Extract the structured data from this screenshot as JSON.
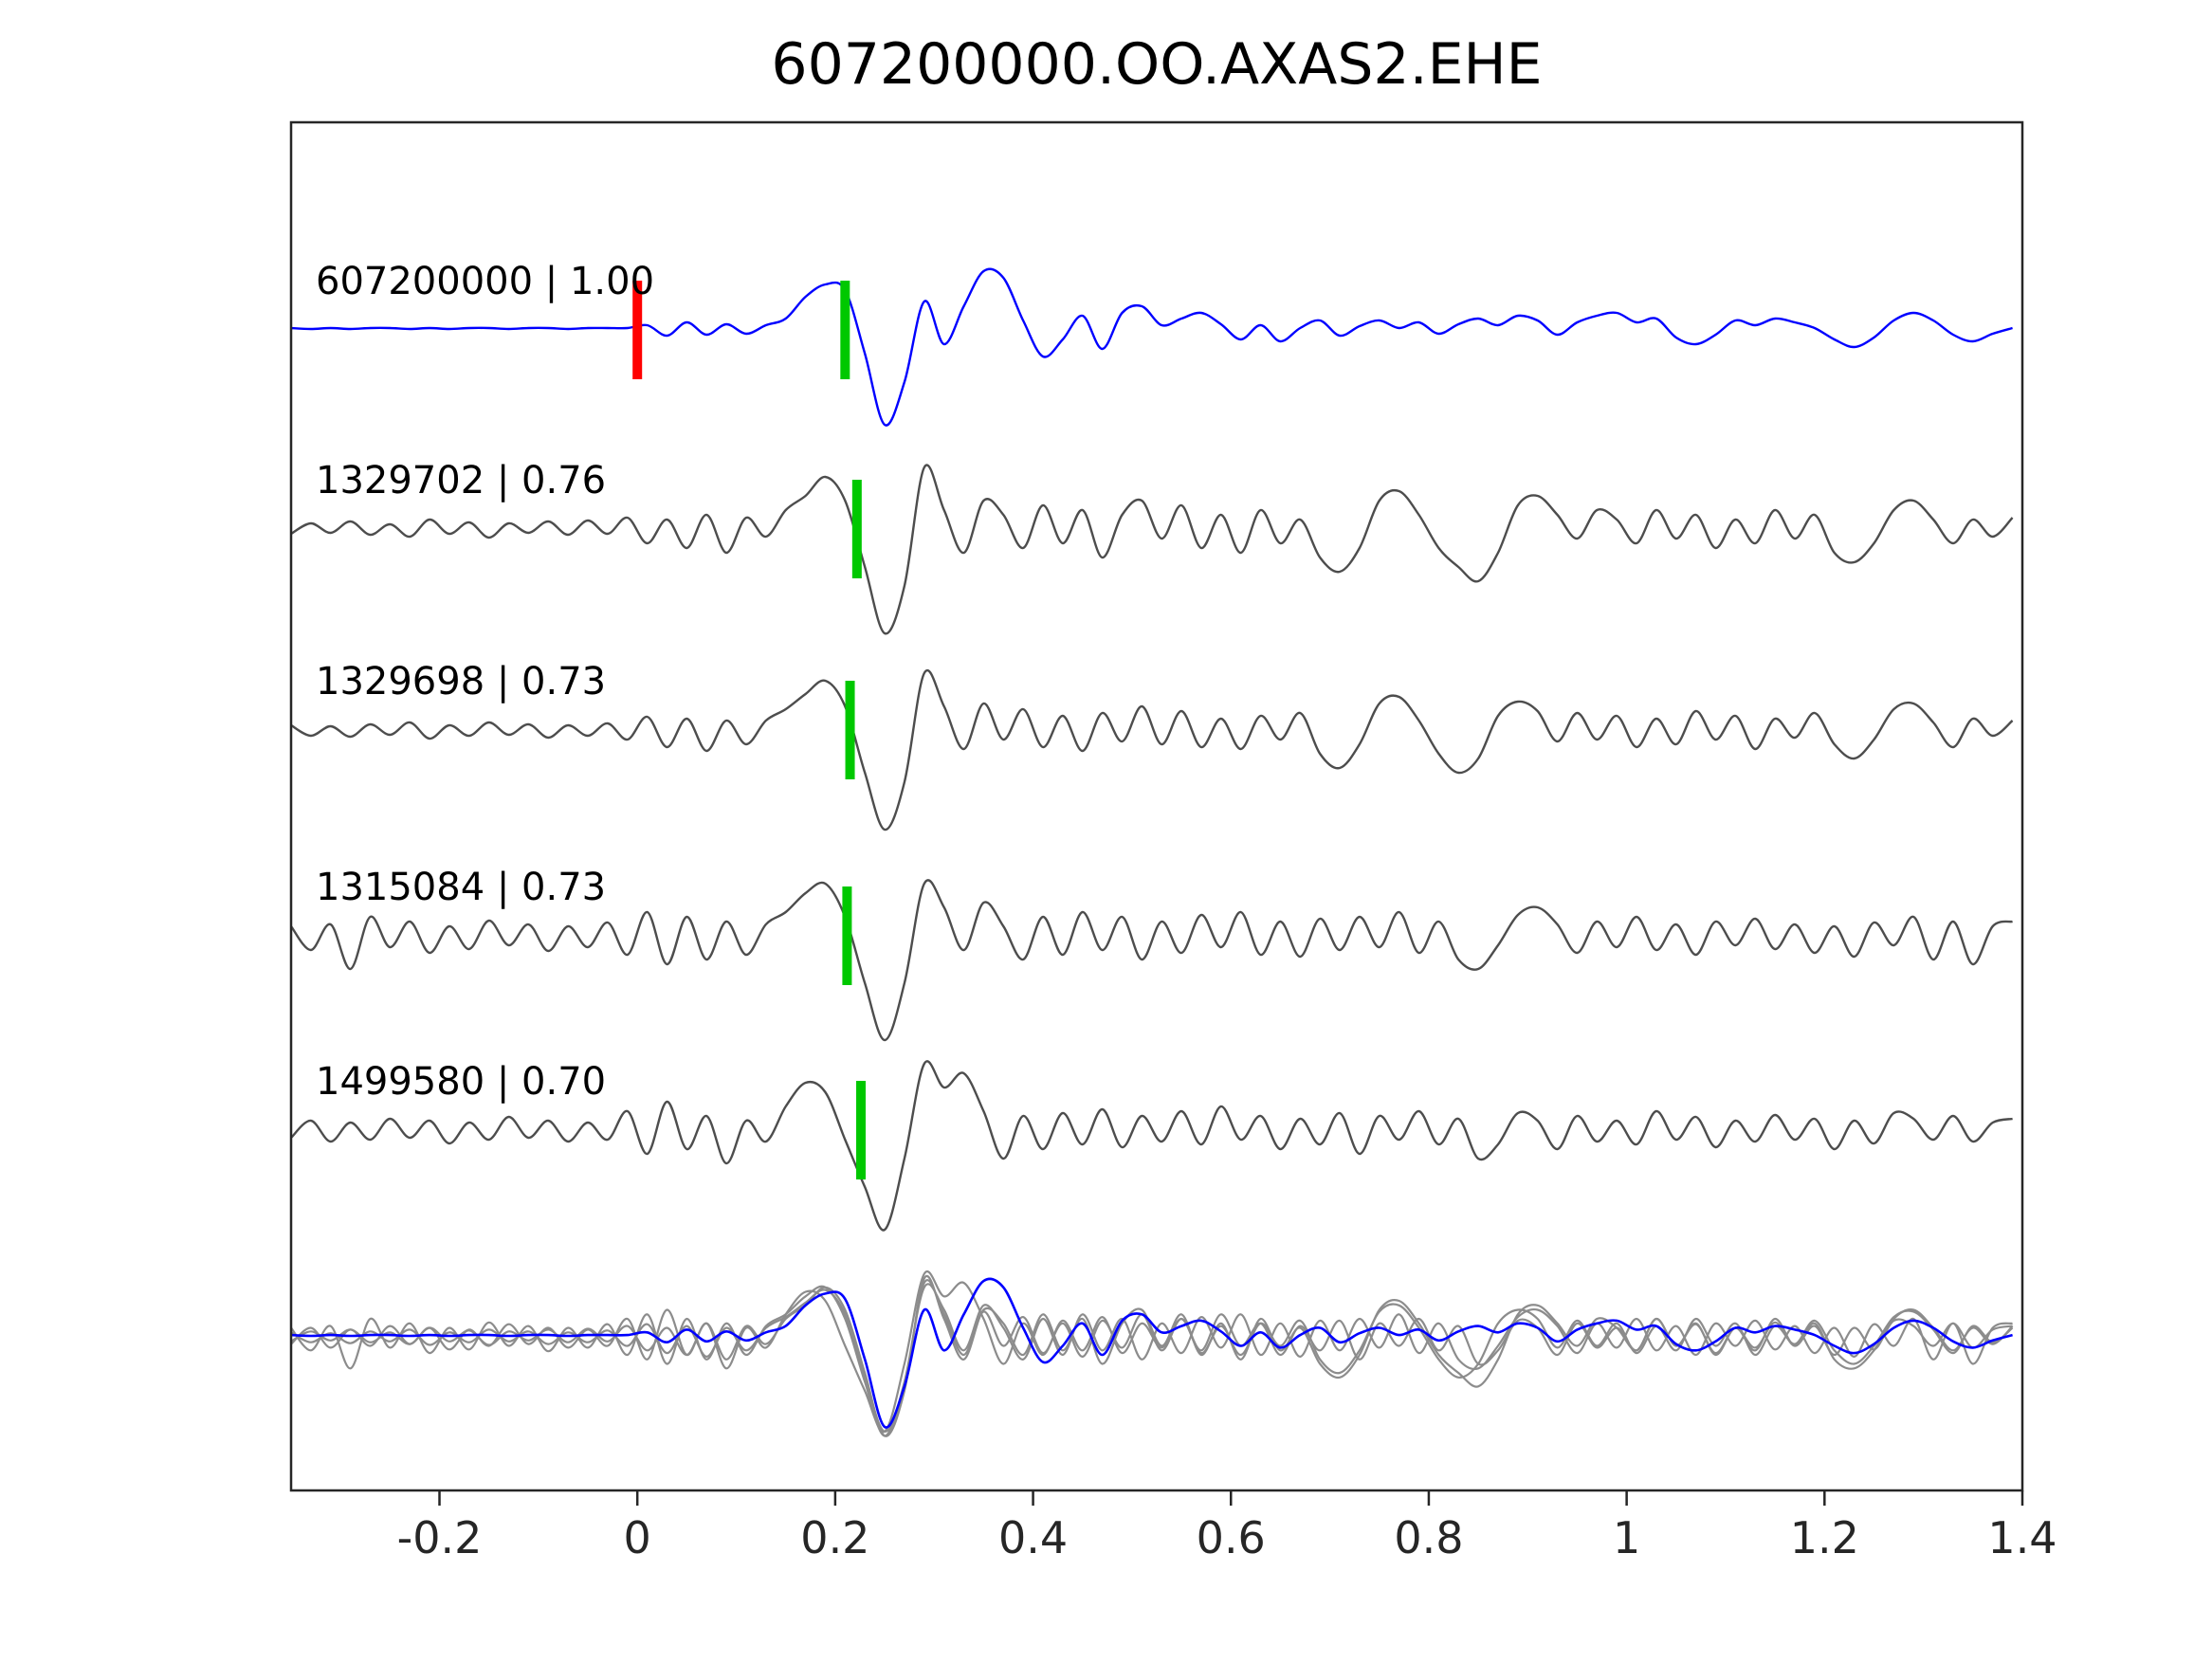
{
  "title": "607200000.OO.AXAS2.EHE",
  "colors": {
    "template": "#0000ff",
    "match": "#4d4d4d",
    "overlay_gray": "#8c8c8c",
    "pick_green": "#00c800",
    "pick_red": "#ff0000",
    "axis": "#262626",
    "text": "#000000"
  },
  "chart_data": {
    "type": "line",
    "title": "607200000.OO.AXAS2.EHE",
    "xlabel": "",
    "ylabel": "",
    "xlim": [
      -0.35,
      1.4
    ],
    "grid": false,
    "legend": "none",
    "x_ticks": [
      {
        "value": -0.2,
        "label": "-0.2"
      },
      {
        "value": 0,
        "label": "0"
      },
      {
        "value": 0.2,
        "label": "0.2"
      },
      {
        "value": 0.4,
        "label": "0.4"
      },
      {
        "value": 0.6,
        "label": "0.6"
      },
      {
        "value": 0.8,
        "label": "0.8"
      },
      {
        "value": 1,
        "label": "1"
      },
      {
        "value": 1.2,
        "label": "1.2"
      },
      {
        "value": 1.4,
        "label": "1.4"
      }
    ],
    "sample_x0": -0.35,
    "sample_dx": 0.02,
    "amplitude_units": "normalized (estimated from pixels)",
    "traces": [
      {
        "id": "607200000",
        "corr": "1.00",
        "label": "607200000 | 1.00",
        "color_key": "template",
        "onset_x": 0.0,
        "pick_x": 0.21,
        "values": [
          0.02,
          0.01,
          0.02,
          0.01,
          0.02,
          0.02,
          0.01,
          0.02,
          0.01,
          0.02,
          0.02,
          0.01,
          0.02,
          0.02,
          0.01,
          0.02,
          0.02,
          0.02,
          0.05,
          -0.06,
          0.08,
          -0.05,
          0.06,
          -0.04,
          0.05,
          0.12,
          0.35,
          0.48,
          0.42,
          -0.25,
          -1.0,
          -0.55,
          0.3,
          -0.15,
          0.25,
          0.62,
          0.55,
          0.1,
          -0.28,
          -0.1,
          0.15,
          -0.2,
          0.18,
          0.25,
          0.05,
          0.12,
          0.18,
          0.06,
          -0.1,
          0.05,
          -0.12,
          0.02,
          0.1,
          -0.06,
          0.04,
          0.1,
          0.02,
          0.08,
          -0.04,
          0.06,
          0.12,
          0.05,
          0.15,
          0.1,
          -0.05,
          0.08,
          0.15,
          0.18,
          0.08,
          0.12,
          -0.08,
          -0.15,
          -0.05,
          0.1,
          0.05,
          0.12,
          0.08,
          0.02,
          -0.1,
          -0.18,
          -0.08,
          0.1,
          0.18,
          0.1,
          -0.05,
          -0.12,
          -0.04,
          0.02
        ]
      },
      {
        "id": "1329702",
        "corr": "0.76",
        "label": "1329702 | 0.76",
        "color_key": "match",
        "onset_x": null,
        "pick_x": 0.222,
        "values": [
          -0.05,
          0.06,
          -0.04,
          0.08,
          -0.06,
          0.05,
          -0.08,
          0.1,
          -0.05,
          0.07,
          -0.09,
          0.06,
          -0.04,
          0.08,
          -0.06,
          0.09,
          -0.05,
          0.12,
          -0.15,
          0.1,
          -0.2,
          0.15,
          -0.25,
          0.12,
          -0.08,
          0.2,
          0.35,
          0.55,
          0.3,
          -0.4,
          -1.1,
          -0.6,
          0.65,
          0.2,
          -0.25,
          0.3,
          0.15,
          -0.2,
          0.25,
          -0.15,
          0.2,
          -0.3,
          0.15,
          0.3,
          -0.1,
          0.25,
          -0.2,
          0.15,
          -0.25,
          0.2,
          -0.15,
          0.1,
          -0.3,
          -0.45,
          -0.2,
          0.3,
          0.4,
          0.15,
          -0.2,
          -0.4,
          -0.55,
          -0.25,
          0.25,
          0.35,
          0.15,
          -0.1,
          0.2,
          0.1,
          -0.15,
          0.2,
          -0.1,
          0.15,
          -0.2,
          0.1,
          -0.15,
          0.2,
          -0.1,
          0.15,
          -0.25,
          -0.35,
          -0.15,
          0.2,
          0.3,
          0.1,
          -0.15,
          0.1,
          -0.08,
          0.12
        ]
      },
      {
        "id": "1329698",
        "corr": "0.73",
        "label": "1329698 | 0.73",
        "color_key": "match",
        "onset_x": null,
        "pick_x": 0.215,
        "values": [
          0.05,
          -0.06,
          0.04,
          -0.07,
          0.06,
          -0.05,
          0.08,
          -0.09,
          0.05,
          -0.06,
          0.08,
          -0.05,
          0.06,
          -0.08,
          0.05,
          -0.06,
          0.07,
          -0.1,
          0.14,
          -0.18,
          0.12,
          -0.22,
          0.1,
          -0.15,
          0.1,
          0.22,
          0.38,
          0.52,
          0.25,
          -0.45,
          -1.05,
          -0.55,
          0.6,
          0.25,
          -0.2,
          0.28,
          -0.1,
          0.22,
          -0.18,
          0.15,
          -0.22,
          0.18,
          -0.12,
          0.25,
          -0.15,
          0.2,
          -0.18,
          0.12,
          -0.2,
          0.15,
          -0.1,
          0.18,
          -0.25,
          -0.4,
          -0.15,
          0.28,
          0.35,
          0.1,
          -0.25,
          -0.45,
          -0.3,
          0.15,
          0.3,
          0.2,
          -0.12,
          0.18,
          -0.1,
          0.15,
          -0.18,
          0.12,
          -0.15,
          0.2,
          -0.1,
          0.15,
          -0.2,
          0.12,
          -0.08,
          0.18,
          -0.15,
          -0.3,
          -0.1,
          0.22,
          0.28,
          0.08,
          -0.18,
          0.12,
          -0.06,
          0.1
        ]
      },
      {
        "id": "1315084",
        "corr": "0.73",
        "label": "1315084 | 0.73",
        "color_key": "match",
        "onset_x": null,
        "pick_x": 0.212,
        "values": [
          0.1,
          -0.15,
          0.12,
          -0.35,
          0.2,
          -0.12,
          0.15,
          -0.18,
          0.1,
          -0.14,
          0.16,
          -0.1,
          0.12,
          -0.16,
          0.1,
          -0.12,
          0.14,
          -0.2,
          0.25,
          -0.3,
          0.2,
          -0.25,
          0.15,
          -0.2,
          0.12,
          0.25,
          0.45,
          0.55,
          0.2,
          -0.5,
          -1.1,
          -0.5,
          0.55,
          0.3,
          -0.15,
          0.35,
          0.1,
          -0.25,
          0.2,
          -0.2,
          0.25,
          -0.15,
          0.2,
          -0.25,
          0.15,
          -0.18,
          0.22,
          -0.12,
          0.25,
          -0.2,
          0.15,
          -0.22,
          0.18,
          -0.15,
          0.2,
          -0.12,
          0.25,
          -0.18,
          0.15,
          -0.25,
          -0.35,
          -0.1,
          0.22,
          0.3,
          0.12,
          -0.18,
          0.15,
          -0.12,
          0.2,
          -0.15,
          0.12,
          -0.2,
          0.15,
          -0.1,
          0.18,
          -0.14,
          0.12,
          -0.18,
          0.1,
          -0.22,
          0.14,
          -0.1,
          0.2,
          -0.25,
          0.15,
          -0.3,
          0.1,
          0.15
        ]
      },
      {
        "id": "1499580",
        "corr": "0.70",
        "label": "1499580 | 0.70",
        "color_key": "match",
        "onset_x": null,
        "pick_x": 0.226,
        "values": [
          -0.08,
          0.1,
          -0.12,
          0.08,
          -0.1,
          0.12,
          -0.08,
          0.1,
          -0.14,
          0.08,
          -0.1,
          0.14,
          -0.08,
          0.1,
          -0.12,
          0.08,
          -0.1,
          0.2,
          -0.25,
          0.3,
          -0.2,
          0.15,
          -0.35,
          0.1,
          -0.12,
          0.25,
          0.5,
          0.4,
          -0.1,
          -0.6,
          -1.05,
          -0.3,
          0.7,
          0.45,
          0.6,
          0.2,
          -0.3,
          0.15,
          -0.2,
          0.18,
          -0.15,
          0.22,
          -0.18,
          0.15,
          -0.12,
          0.2,
          -0.15,
          0.25,
          -0.1,
          0.15,
          -0.2,
          0.12,
          -0.15,
          0.18,
          -0.25,
          0.15,
          -0.1,
          0.2,
          -0.15,
          0.12,
          -0.3,
          -0.15,
          0.18,
          0.1,
          -0.2,
          0.15,
          -0.12,
          0.1,
          -0.15,
          0.2,
          -0.1,
          0.14,
          -0.18,
          0.1,
          -0.12,
          0.16,
          -0.1,
          0.12,
          -0.2,
          0.1,
          -0.14,
          0.18,
          0.12,
          -0.1,
          0.15,
          -0.12,
          0.08,
          0.12
        ]
      }
    ],
    "overlay_row": {
      "description": "all five traces overlaid at bottom",
      "trace_ids": [
        "1329702",
        "1329698",
        "1315084",
        "1499580",
        "607200000"
      ]
    }
  }
}
